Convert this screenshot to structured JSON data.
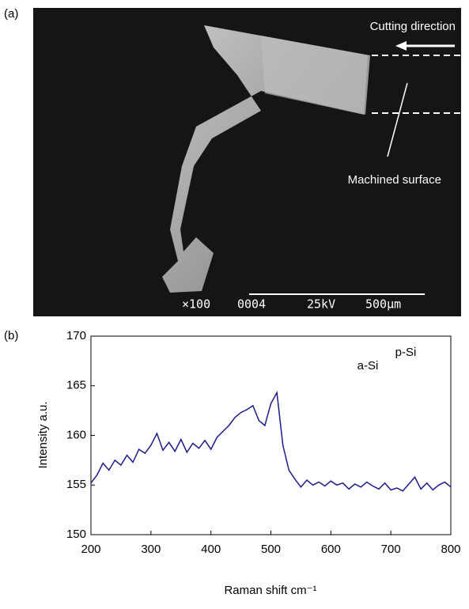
{
  "panel_labels": [
    "(a)",
    "(b)"
  ],
  "image": {
    "labels": [
      "Cutting direction",
      "Machined surface"
    ],
    "scale_text": [
      "×100",
      "0004",
      "25kV",
      "500μm"
    ]
  },
  "chart_data": {
    "type": "line",
    "x_label": "Raman shift cm⁻¹",
    "y_label": "Intensity a.u.",
    "annotations": [
      "a-Si",
      "p-Si"
    ],
    "x": [
      200,
      210,
      220,
      230,
      240,
      250,
      260,
      270,
      280,
      290,
      300,
      310,
      320,
      330,
      340,
      350,
      360,
      370,
      380,
      390,
      400,
      410,
      420,
      430,
      440,
      450,
      460,
      470,
      480,
      490,
      500,
      510,
      520,
      530,
      540,
      550,
      560,
      570,
      580,
      590,
      600,
      610,
      620,
      630,
      640,
      650,
      660,
      670,
      680,
      690,
      700,
      710,
      720,
      730,
      740,
      750,
      760,
      770,
      780,
      790,
      800
    ],
    "series": [
      {
        "color": "#1c1c8c",
        "values": [
          155.2,
          156,
          157.2,
          156.5,
          157.5,
          157,
          158,
          157.3,
          158.6,
          158.2,
          159,
          160.2,
          158.5,
          159.3,
          158.4,
          159.6,
          158.3,
          159.2,
          158.7,
          159.5,
          158.6,
          159.8,
          160.4,
          161,
          161.8,
          162.3,
          162.6,
          163,
          161.5,
          161,
          163.2,
          164.3,
          159,
          156.5,
          155.6,
          154.8,
          155.5,
          155,
          155.3,
          154.9,
          155.4,
          155,
          155.2,
          154.6,
          155.1,
          154.8,
          155.3,
          154.9,
          154.6,
          155.2,
          154.5,
          154.7,
          154.4,
          155.1,
          155.8,
          154.6,
          155.2,
          154.5,
          155,
          155.3,
          154.8
        ]
      }
    ],
    "xlim": [
      200,
      800
    ],
    "xticks": [
      200,
      300,
      400,
      500,
      600,
      700,
      800
    ],
    "ylim": [
      150,
      170
    ],
    "yticks": [
      150,
      155,
      160,
      165,
      170
    ]
  }
}
